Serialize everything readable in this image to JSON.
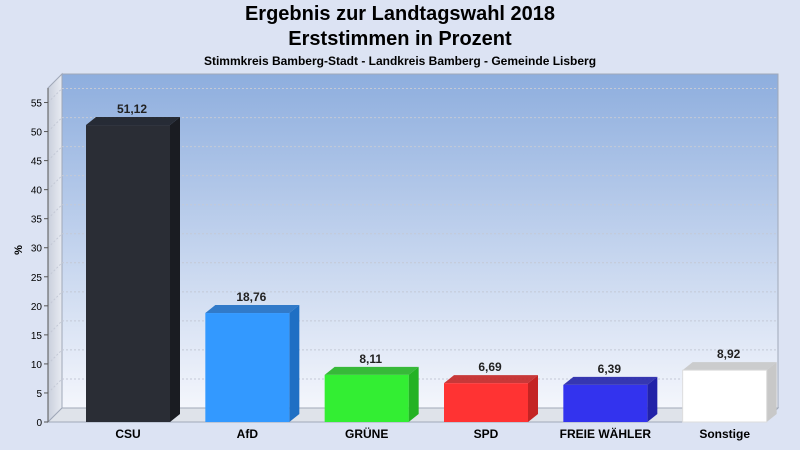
{
  "chart_data": {
    "type": "bar",
    "title": "Ergebnis zur Landtagswahl 2018",
    "subtitle": "Erststimmen in Prozent",
    "subtitle2": "Stimmkreis Bamberg-Stadt - Landkreis Bamberg - Gemeinde Lisberg",
    "xlabel": "",
    "ylabel": "%",
    "ylim": [
      0,
      57.5
    ],
    "yticks": [
      0,
      5,
      10,
      15,
      20,
      25,
      30,
      35,
      40,
      45,
      50,
      55
    ],
    "grid": true,
    "categories": [
      "CSU",
      "AfD",
      "GRÜNE",
      "SPD",
      "FREIE WÄHLER",
      "Sonstige"
    ],
    "values": [
      51.12,
      18.76,
      8.11,
      6.69,
      6.39,
      8.92
    ],
    "value_labels": [
      "51,12",
      "18,76",
      "8,11",
      "6,69",
      "6,39",
      "8,92"
    ],
    "colors": [
      "#2a2d35",
      "#3399ff",
      "#33ee33",
      "#ff3333",
      "#3333ee",
      "#ffffff"
    ],
    "side_colors": [
      "#1a1c22",
      "#1f6fc4",
      "#24b224",
      "#c42424",
      "#2222a8",
      "#c8c8c8"
    ]
  }
}
